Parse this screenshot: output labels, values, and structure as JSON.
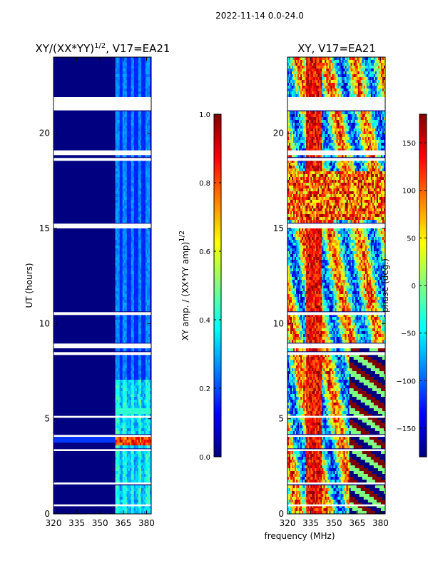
{
  "figure": {
    "suptitle": "2022-11-14 0.0-24.0"
  },
  "colors": {
    "background": "#000080",
    "gap": "#ffffff",
    "axis": "#000000"
  },
  "chart_data": [
    {
      "type": "heatmap",
      "title_main": "XY/(XX*YY)",
      "title_sup": "1/2",
      "title_suffix": ", V17=EA21",
      "xlabel": "",
      "ylabel": "UT (hours)",
      "xlim": [
        320,
        383
      ],
      "ylim": [
        0,
        24
      ],
      "xticks": [
        320,
        335,
        350,
        365,
        380
      ],
      "yticks": [
        0,
        5,
        10,
        15,
        20
      ],
      "colorbar": {
        "label": "XY amp. / (XX*YY amp)",
        "label_sup": "1/2",
        "range": [
          0.0,
          1.0
        ],
        "ticks": [
          "0.0",
          "0.2",
          "0.4",
          "0.6",
          "0.8",
          "1.0"
        ]
      }
    },
    {
      "type": "heatmap",
      "title": "XY, V17=EA21",
      "xlabel": "frequency (MHz)",
      "ylabel": "",
      "xlim": [
        320,
        383
      ],
      "ylim": [
        0,
        24
      ],
      "xticks": [
        320,
        335,
        350,
        365,
        380
      ],
      "yticks": [
        0,
        5,
        10,
        15,
        20
      ],
      "colorbar": {
        "label": "phase (deg.)",
        "range": [
          -180,
          180
        ],
        "ticks": [
          "−150",
          "−100",
          "−50",
          "0",
          "50",
          "100",
          "150"
        ]
      }
    }
  ],
  "data_gaps_hours": [
    [
      21.2,
      21.9
    ],
    [
      18.85,
      19.1
    ],
    [
      18.55,
      18.7
    ],
    [
      15.0,
      15.25
    ],
    [
      10.45,
      10.6
    ],
    [
      8.7,
      8.95
    ],
    [
      8.35,
      8.5
    ],
    [
      5.05,
      5.15
    ],
    [
      4.05,
      4.15
    ],
    [
      3.3,
      3.4
    ],
    [
      1.55,
      1.65
    ],
    [
      0.4,
      0.5
    ]
  ]
}
